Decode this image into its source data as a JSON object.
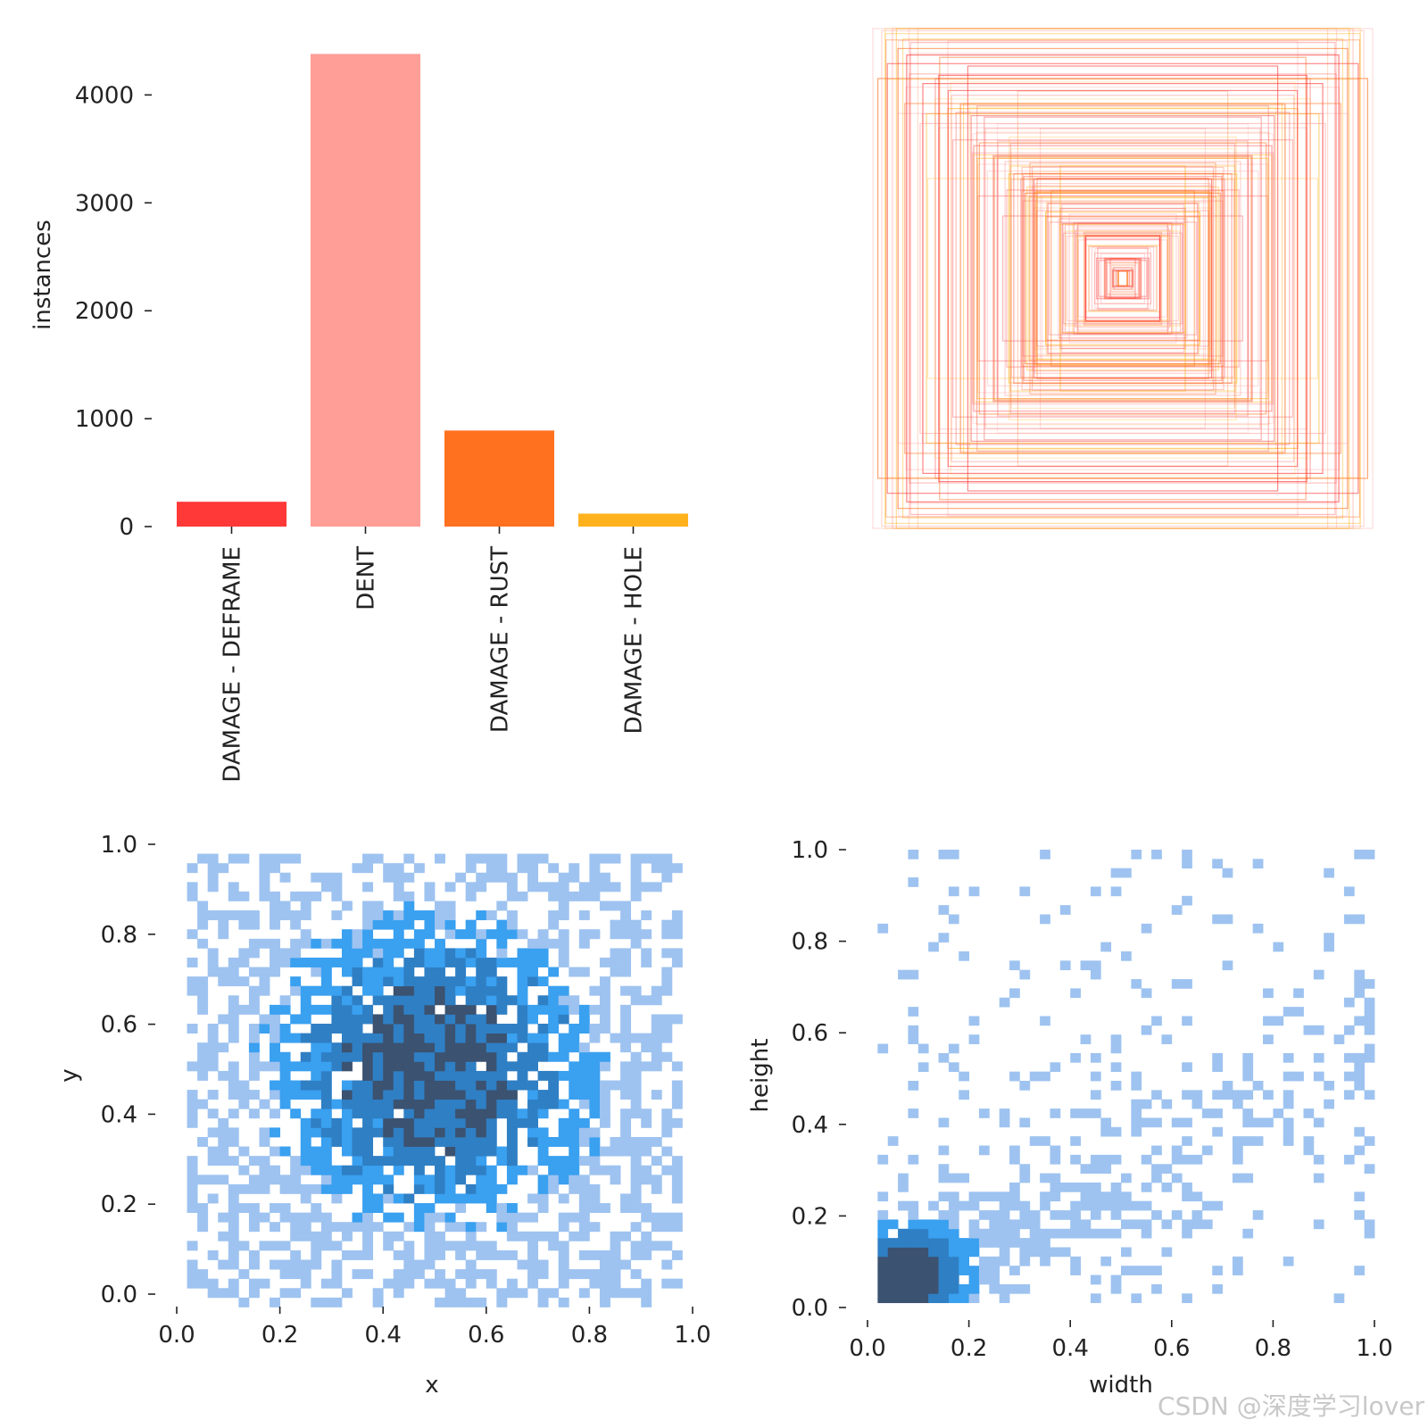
{
  "watermark": "CSDN @深度学习lover",
  "colors": {
    "deframe": "#ff3838",
    "dent": "#ff9d97",
    "rust": "#ff701f",
    "hole": "#ffb21d",
    "hist_light": "#9ec3f0",
    "hist_mid": "#3aa0f0",
    "hist_dark": "#3b5270"
  },
  "chart_data": [
    {
      "id": "class-counts",
      "type": "bar",
      "ylabel": "instances",
      "categories": [
        "DAMAGE - DEFRAME",
        "DENT",
        "DAMAGE - RUST",
        "DAMAGE - HOLE"
      ],
      "values": [
        230,
        4380,
        890,
        120
      ],
      "ylim": [
        0,
        4400
      ],
      "yticks": [
        "0",
        "1000",
        "2000",
        "3000",
        "4000"
      ]
    },
    {
      "id": "box-overlay",
      "type": "scatter",
      "title": "",
      "description_of_content": "overlaid centered bounding boxes",
      "box_sizes": [
        [
          0.05,
          0.08
        ],
        [
          0.1,
          0.12
        ],
        [
          0.15,
          0.18
        ],
        [
          0.2,
          0.22
        ],
        [
          0.25,
          0.28
        ],
        [
          0.3,
          0.3
        ],
        [
          0.35,
          0.38
        ],
        [
          0.4,
          0.42
        ],
        [
          0.45,
          0.45
        ],
        [
          0.5,
          0.55
        ],
        [
          0.55,
          0.6
        ],
        [
          0.6,
          0.58
        ],
        [
          0.65,
          0.7
        ],
        [
          0.7,
          0.68
        ],
        [
          0.75,
          0.8
        ],
        [
          0.8,
          0.78
        ],
        [
          0.85,
          0.9
        ],
        [
          0.9,
          0.92
        ],
        [
          0.95,
          0.98
        ],
        [
          1.0,
          1.0
        ],
        [
          0.62,
          0.85
        ],
        [
          0.9,
          0.66
        ],
        [
          0.42,
          0.75
        ],
        [
          0.78,
          0.4
        ],
        [
          0.33,
          0.6
        ],
        [
          0.58,
          0.33
        ],
        [
          0.7,
          0.95
        ],
        [
          0.98,
          0.8
        ],
        [
          0.25,
          0.45
        ],
        [
          0.48,
          0.25
        ]
      ]
    },
    {
      "id": "xy-hist",
      "type": "heatmap",
      "xlabel": "x",
      "ylabel": "y",
      "xlim": [
        0,
        1
      ],
      "ylim": [
        0,
        1
      ],
      "xticks": [
        "0.0",
        "0.2",
        "0.4",
        "0.6",
        "0.8",
        "1.0"
      ],
      "yticks": [
        "0.0",
        "0.2",
        "0.4",
        "0.6",
        "0.8",
        "1.0"
      ],
      "center": [
        0.5,
        0.52
      ],
      "spread": [
        0.2,
        0.2
      ],
      "bins": 50
    },
    {
      "id": "wh-hist",
      "type": "heatmap",
      "xlabel": "width",
      "ylabel": "height",
      "xlim": [
        0,
        1
      ],
      "ylim": [
        0,
        1
      ],
      "xticks": [
        "0.0",
        "0.2",
        "0.4",
        "0.6",
        "0.8",
        "1.0"
      ],
      "yticks": [
        "0.0",
        "0.2",
        "0.4",
        "0.6",
        "0.8",
        "1.0"
      ],
      "peak": [
        0.08,
        0.08
      ],
      "bins": 50
    }
  ]
}
